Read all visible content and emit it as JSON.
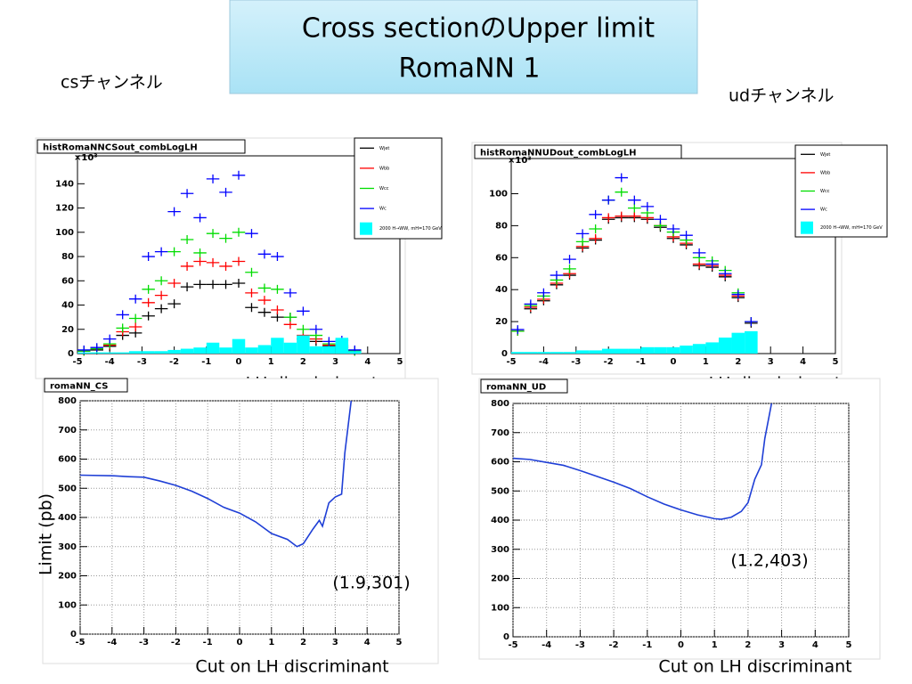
{
  "title": "Cross sectionのUpper limit",
  "subtitle": "RomaNN 1",
  "channel_labels": [
    "csチャンネル",
    "udチャンネル"
  ],
  "chart_data": [
    {
      "type": "errorbar",
      "title": "histRomaNNCSout_combLogLH",
      "xlabel": "LH discriminant",
      "y_multiplier": "×10³",
      "x": [
        -4.8,
        -4.4,
        -4.0,
        -3.6,
        -3.2,
        -2.8,
        -2.4,
        -2.0,
        -1.6,
        -1.2,
        -0.8,
        -0.4,
        0.0,
        0.4,
        0.8,
        1.2,
        1.6,
        2.0,
        2.4,
        2.8,
        3.2,
        3.6
      ],
      "xlim": [
        -5,
        5
      ],
      "xticks": [
        -5,
        -4,
        -3,
        -2,
        -1,
        0,
        1,
        2,
        3,
        4,
        5
      ],
      "ylim": [
        0,
        163
      ],
      "yticks": [
        0,
        20,
        40,
        60,
        80,
        100,
        120,
        140
      ],
      "grid": false,
      "series": [
        {
          "name": "Wjet",
          "color": "#000000",
          "style": "cross",
          "values": [
            2,
            3,
            6,
            15,
            17,
            31,
            37,
            41,
            55,
            57,
            57,
            57,
            58,
            38,
            34,
            30,
            30,
            12,
            10,
            6,
            5,
            2
          ]
        },
        {
          "name": "Wbb",
          "color": "#ff0000",
          "style": "cross",
          "values": [
            2,
            4,
            7,
            18,
            22,
            42,
            48,
            58,
            72,
            76,
            75,
            72,
            76,
            50,
            44,
            36,
            24,
            15,
            12,
            7,
            6,
            2
          ]
        },
        {
          "name": "Wcc",
          "color": "#00dd00",
          "style": "cross",
          "values": [
            2,
            4,
            8,
            21,
            29,
            53,
            60,
            84,
            94,
            83,
            99,
            95,
            100,
            67,
            54,
            53,
            30,
            20,
            15,
            8,
            7,
            2
          ]
        },
        {
          "name": "Wc",
          "color": "#0000ff",
          "style": "cross",
          "values": [
            3,
            5,
            12,
            32,
            45,
            80,
            84,
            117,
            132,
            112,
            144,
            133,
            147,
            99,
            82,
            80,
            50,
            35,
            20,
            10,
            11,
            3
          ]
        },
        {
          "name": "2000 H→WW, mH=170 GeV",
          "color": "#00ffff",
          "style": "fill",
          "values": [
            1,
            1,
            1,
            1,
            2,
            2,
            2,
            3,
            4,
            5,
            9,
            5,
            12,
            5,
            7,
            13,
            9,
            15,
            6,
            6,
            13,
            2
          ]
        }
      ]
    },
    {
      "type": "errorbar",
      "title": "histRomaNNUDout_combLogLH",
      "xlabel": "LH discriminant",
      "y_multiplier": "×10³",
      "x": [
        -4.8,
        -4.4,
        -4.0,
        -3.6,
        -3.2,
        -2.8,
        -2.4,
        -2.0,
        -1.6,
        -1.2,
        -0.8,
        -0.4,
        0.0,
        0.4,
        0.8,
        1.2,
        1.6,
        2.0,
        2.4
      ],
      "xlim": [
        -5,
        5
      ],
      "xticks": [
        -5,
        -4,
        -3,
        -2,
        -1,
        0,
        1,
        2,
        3,
        4,
        5
      ],
      "ylim": [
        0,
        122
      ],
      "yticks": [
        0,
        20,
        40,
        60,
        80,
        100
      ],
      "grid": false,
      "series": [
        {
          "name": "Wjet",
          "color": "#000000",
          "style": "cross",
          "values": [
            14,
            28,
            33,
            43,
            49,
            66,
            71,
            84,
            85,
            85,
            84,
            79,
            72,
            68,
            55,
            54,
            48,
            35,
            19
          ]
        },
        {
          "name": "Wbb",
          "color": "#ff0000",
          "style": "cross",
          "values": [
            14,
            29,
            34,
            44,
            50,
            67,
            72,
            85,
            86,
            86,
            85,
            80,
            73,
            69,
            56,
            55,
            49,
            36,
            20
          ]
        },
        {
          "name": "Wcc",
          "color": "#00dd00",
          "style": "cross",
          "values": [
            14,
            30,
            36,
            46,
            53,
            70,
            78,
            96,
            101,
            91,
            88,
            80,
            76,
            71,
            60,
            58,
            52,
            38,
            20
          ]
        },
        {
          "name": "Wc",
          "color": "#0000ff",
          "style": "cross",
          "values": [
            15,
            31,
            38,
            49,
            59,
            75,
            87,
            96,
            110,
            96,
            92,
            84,
            78,
            74,
            63,
            56,
            50,
            37,
            20
          ]
        },
        {
          "name": "2000 H→WW, mH=170 GeV",
          "color": "#00ffff",
          "style": "fill",
          "values": [
            1,
            1,
            1,
            1,
            1,
            2,
            2,
            3,
            3,
            3,
            4,
            4,
            4,
            5,
            6,
            7,
            10,
            13,
            14
          ]
        }
      ]
    },
    {
      "type": "line",
      "title": "romaNN_CS",
      "xlabel": "Cut on LH discriminant",
      "ylabel": "Limit (pb)",
      "annotation": "(1.9,301)",
      "x": [
        -5,
        -4,
        -3.5,
        -3,
        -2.5,
        -2,
        -1.5,
        -1,
        -0.5,
        0,
        0.5,
        1,
        1.5,
        1.8,
        2,
        2.3,
        2.5,
        2.6,
        2.8,
        3.0,
        3.2,
        3.3,
        3.4,
        3.5
      ],
      "xlim": [
        -5,
        5
      ],
      "xticks": [
        -5,
        -4,
        -3,
        -2,
        -1,
        0,
        1,
        2,
        3,
        4,
        5
      ],
      "ylim": [
        0,
        800
      ],
      "yticks": [
        0,
        100,
        200,
        300,
        400,
        500,
        600,
        700,
        800
      ],
      "grid": true,
      "series": [
        {
          "name": "limit",
          "color": "#1f3fd6",
          "values": [
            545,
            543,
            540,
            538,
            525,
            510,
            490,
            465,
            435,
            415,
            385,
            345,
            325,
            300,
            310,
            360,
            390,
            370,
            450,
            470,
            480,
            620,
            710,
            800
          ]
        }
      ]
    },
    {
      "type": "line",
      "title": "romaNN_UD",
      "xlabel": "Cut on LH discriminant",
      "annotation": "(1.2,403)",
      "x": [
        -5,
        -4.5,
        -4,
        -3.5,
        -3,
        -2.5,
        -2,
        -1.5,
        -1,
        -0.5,
        0,
        0.5,
        1,
        1.2,
        1.5,
        1.8,
        2,
        2.2,
        2.4,
        2.5,
        2.7
      ],
      "xlim": [
        -5,
        5
      ],
      "xticks": [
        -5,
        -4,
        -3,
        -2,
        -1,
        0,
        1,
        2,
        3,
        4,
        5
      ],
      "ylim": [
        0,
        800
      ],
      "yticks": [
        0,
        100,
        200,
        300,
        400,
        500,
        600,
        700,
        800
      ],
      "grid": true,
      "series": [
        {
          "name": "limit",
          "color": "#1f3fd6",
          "values": [
            612,
            608,
            598,
            588,
            570,
            550,
            530,
            508,
            480,
            455,
            435,
            418,
            405,
            403,
            410,
            430,
            460,
            540,
            590,
            680,
            800
          ]
        }
      ]
    }
  ]
}
